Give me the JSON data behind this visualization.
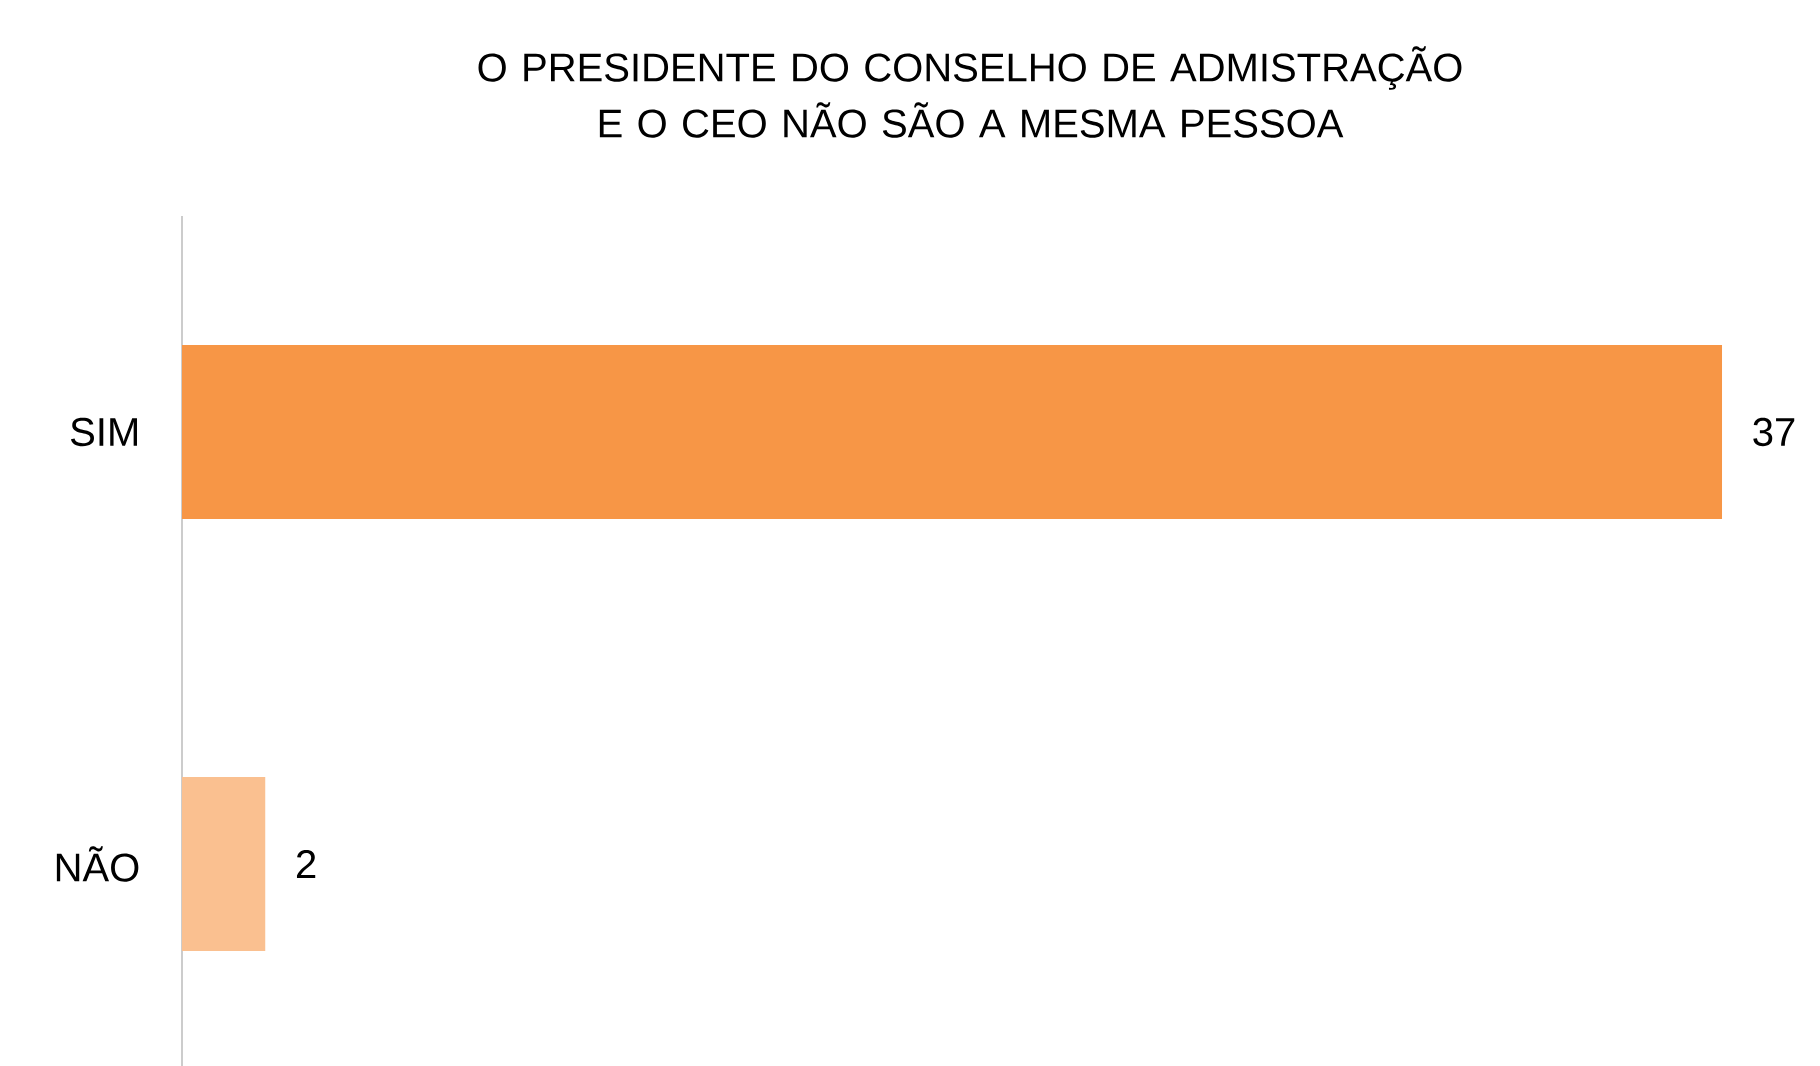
{
  "chart_data": {
    "type": "bar",
    "orientation": "horizontal",
    "title": "O PRESIDENTE DO CONSELHO DE ADMISTRAÇÃO E O CEO NÃO SÃO A MESMA PESSOA",
    "categories": [
      "SIM",
      "NÃO"
    ],
    "values": [
      37,
      2
    ],
    "colors": [
      "#f79646",
      "#fac090"
    ],
    "data_labels": true
  }
}
